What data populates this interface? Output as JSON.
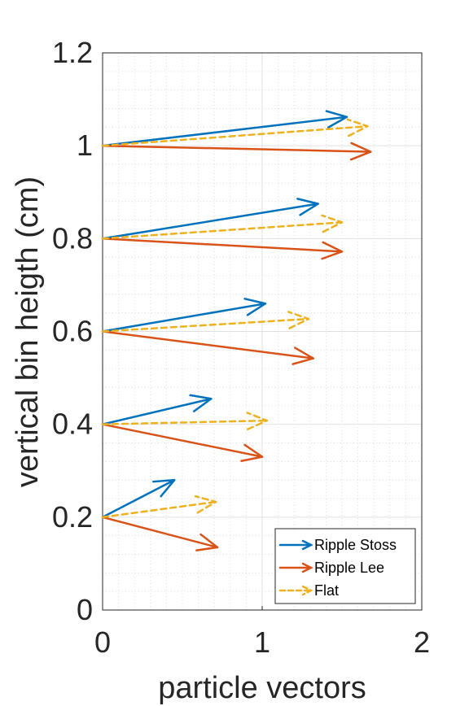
{
  "chart_data": {
    "type": "quiver",
    "xlabel": "particle vectors",
    "ylabel": "vertical bin heigth (cm)",
    "xlim": [
      0,
      2
    ],
    "ylim": [
      0,
      1.2
    ],
    "x_ticks": [
      "0",
      "1",
      "2"
    ],
    "y_ticks": [
      "0",
      "0.2",
      "0.4",
      "0.6",
      "0.8",
      "1",
      "1.2"
    ],
    "grid": "major and minor, dotted",
    "legend_position": "bottom-right",
    "series": [
      {
        "name": "Ripple Stoss",
        "color": "#0072BD",
        "line_style": "solid",
        "vectors": [
          {
            "x": 0,
            "y": 0.2,
            "u": 0.45,
            "v": 0.08
          },
          {
            "x": 0,
            "y": 0.4,
            "u": 0.68,
            "v": 0.055
          },
          {
            "x": 0,
            "y": 0.6,
            "u": 1.02,
            "v": 0.06
          },
          {
            "x": 0,
            "y": 0.8,
            "u": 1.35,
            "v": 0.075
          },
          {
            "x": 0,
            "y": 1.0,
            "u": 1.53,
            "v": 0.062
          }
        ]
      },
      {
        "name": "Ripple Lee",
        "color": "#D95319",
        "line_style": "solid",
        "vectors": [
          {
            "x": 0,
            "y": 0.2,
            "u": 0.72,
            "v": -0.065
          },
          {
            "x": 0,
            "y": 0.4,
            "u": 1.0,
            "v": -0.07
          },
          {
            "x": 0,
            "y": 0.6,
            "u": 1.32,
            "v": -0.058
          },
          {
            "x": 0,
            "y": 0.8,
            "u": 1.5,
            "v": -0.028
          },
          {
            "x": 0,
            "y": 1.0,
            "u": 1.68,
            "v": -0.013
          }
        ]
      },
      {
        "name": "Flat",
        "color": "#EDB120",
        "line_style": "dashed",
        "vectors": [
          {
            "x": 0,
            "y": 0.2,
            "u": 0.71,
            "v": 0.033
          },
          {
            "x": 0,
            "y": 0.4,
            "u": 1.03,
            "v": 0.008
          },
          {
            "x": 0,
            "y": 0.6,
            "u": 1.29,
            "v": 0.027
          },
          {
            "x": 0,
            "y": 0.8,
            "u": 1.5,
            "v": 0.035
          },
          {
            "x": 0,
            "y": 1.0,
            "u": 1.66,
            "v": 0.042
          }
        ]
      }
    ]
  }
}
